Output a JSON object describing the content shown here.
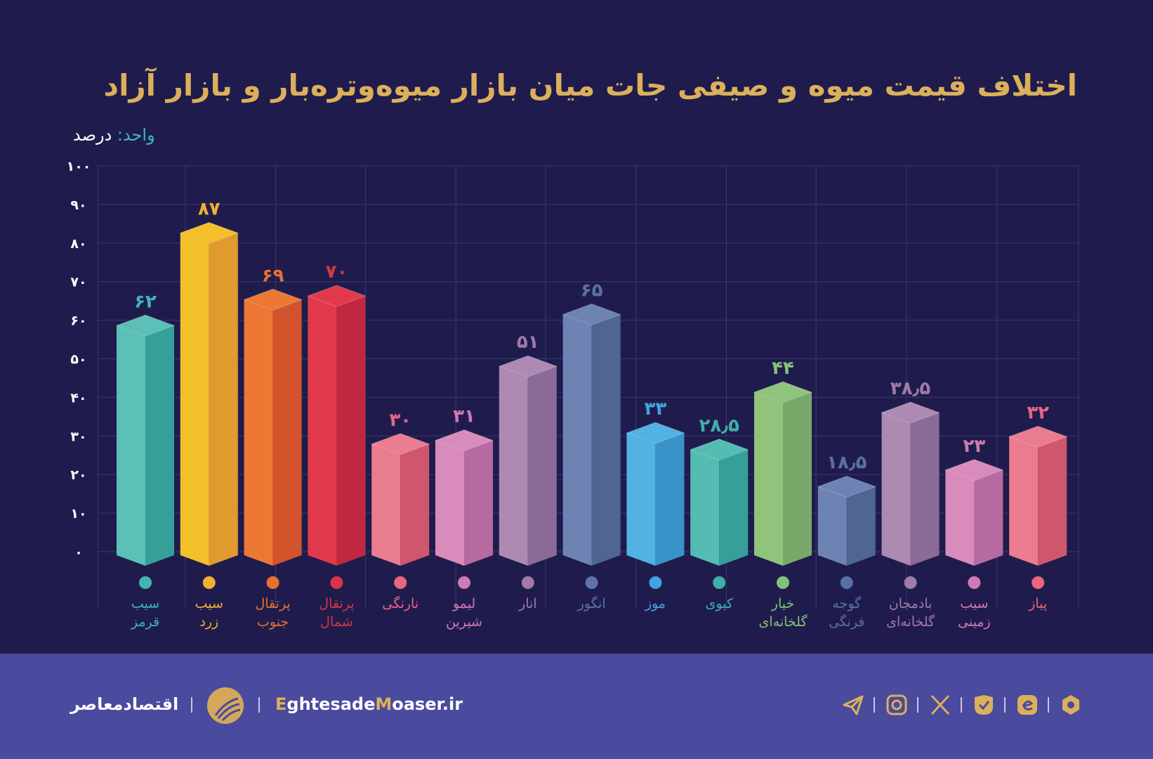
{
  "title": "اختلاف قیمت میوه و صیفی جات میان بازار میوه‌وتره‌بار و بازار آزاد",
  "unit_label": "واحد:",
  "unit_value": "درصد",
  "footer": {
    "brand": "اقتصادمعاصر",
    "site_prefix_1": "E",
    "site_part_1": "ghtesade",
    "site_prefix_2": "M",
    "site_part_2": "oaser.ir",
    "icons": [
      "hexagon-icon",
      "eitaa-icon",
      "bale-icon",
      "x-icon",
      "instagram-icon",
      "telegram-icon"
    ]
  },
  "colors": {
    "background": "#1f1c4d",
    "footer": "#4a4a9e",
    "title": "#dcb05a"
  },
  "chart_data": {
    "type": "bar",
    "title": "اختلاف قیمت میوه و صیفی جات میان بازار میوه‌وتره‌بار و بازار آزاد",
    "ylabel": "واحد: درصد",
    "ylim": [
      0,
      100
    ],
    "grid": true,
    "yticks": [
      0,
      10,
      20,
      30,
      40,
      50,
      60,
      70,
      80,
      90,
      100
    ],
    "ytick_labels": [
      "۰",
      "۱۰",
      "۲۰",
      "۳۰",
      "۴۰",
      "۵۰",
      "۶۰",
      "۷۰",
      "۸۰",
      "۹۰",
      "۱۰۰"
    ],
    "categories": [
      [
        "سیب",
        "قرمز"
      ],
      [
        "سیب",
        "زرد"
      ],
      [
        "پرتقال",
        "جنوب"
      ],
      [
        "پرتقال",
        "شمال"
      ],
      [
        "نارنگی",
        ""
      ],
      [
        "لیمو",
        "شیرین"
      ],
      [
        "انار",
        ""
      ],
      [
        "انگور",
        ""
      ],
      [
        "موز",
        ""
      ],
      [
        "کیوی",
        ""
      ],
      [
        "خیار",
        "گلخانه‌ای"
      ],
      [
        "گوجه",
        "فرنگی"
      ],
      [
        "بادمجان",
        "گلخانه‌ای"
      ],
      [
        "سیب",
        "زمینی"
      ],
      [
        "پیاز",
        ""
      ]
    ],
    "values": [
      62,
      87,
      69,
      70,
      30,
      31,
      51,
      65,
      33,
      28.5,
      44,
      18.5,
      38.5,
      23,
      32
    ],
    "value_labels": [
      "۶۲",
      "۸۷",
      "۶۹",
      "۷۰",
      "۳۰",
      "۳۱",
      "۵۱",
      "۶۵",
      "۳۳",
      "۲۸٫۵",
      "۴۴",
      "۱۸٫۵",
      "۳۸٫۵",
      "۲۳",
      "۳۲"
    ],
    "bar_colors": [
      [
        "#5cc0b8",
        "#35a09a",
        "#3fb6b0"
      ],
      [
        "#f4c02a",
        "#e09a2e",
        "#f0b030"
      ],
      [
        "#ec7834",
        "#d3542c",
        "#e8702f"
      ],
      [
        "#e23a4c",
        "#c0283f",
        "#d83448"
      ],
      [
        "#ea7c90",
        "#cf566d",
        "#e8677e"
      ],
      [
        "#d98cbc",
        "#b76a9f",
        "#cf7ab2"
      ],
      [
        "#ad8ab2",
        "#8a6b98",
        "#a07aa8"
      ],
      [
        "#6d83b3",
        "#4f6594",
        "#5d72a6"
      ],
      [
        "#52b2e2",
        "#3a93c8",
        "#42a4dc"
      ],
      [
        "#55bcb4",
        "#35a09a",
        "#3fb0a8"
      ],
      [
        "#90c47c",
        "#78a86a",
        "#86c078"
      ],
      [
        "#6d83b3",
        "#4f6594",
        "#5a70a4"
      ],
      [
        "#ad8ab2",
        "#8a6b98",
        "#a07aa8"
      ],
      [
        "#d98cbc",
        "#b76a9f",
        "#cf7ab2"
      ],
      [
        "#ea7c90",
        "#cf566d",
        "#e8677e"
      ]
    ]
  }
}
